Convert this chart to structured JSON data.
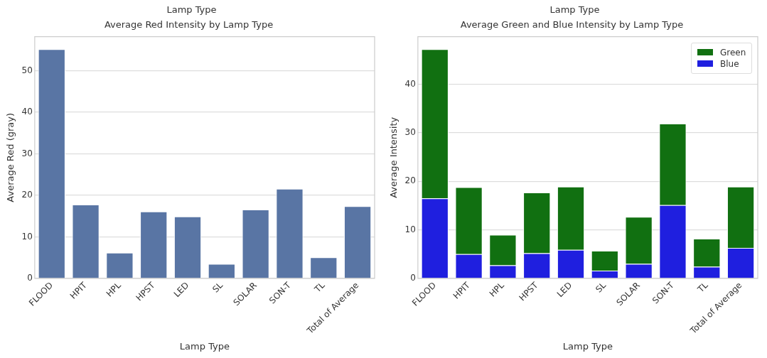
{
  "chart_data": [
    {
      "type": "bar",
      "title": "Average Red Intensity by Lamp Type",
      "xlabel": "Lamp Type",
      "ylabel": "Average Red (gray)",
      "annotations": [
        "Lamp Type"
      ],
      "categories": [
        "FLOOD",
        "HPIT",
        "HPL",
        "HPST",
        "LED",
        "SL",
        "SOLAR",
        "SON-T",
        "TL",
        "Total of Average"
      ],
      "values": [
        55.2,
        17.8,
        6.2,
        16.1,
        14.9,
        3.5,
        16.6,
        21.6,
        5.1,
        17.4
      ],
      "color": "#5975a4",
      "ylim": [
        0,
        58.2
      ],
      "yticks": [
        0,
        10,
        20,
        30,
        40,
        50
      ],
      "grid": "y"
    },
    {
      "type": "bar",
      "title": "Average Green and Blue Intensity by Lamp Type",
      "xlabel": "Lamp Type",
      "ylabel": "Average Intensity",
      "annotations": [
        "Lamp Type"
      ],
      "categories": [
        "FLOOD",
        "HPIT",
        "HPL",
        "HPST",
        "LED",
        "SL",
        "SOLAR",
        "SON-T",
        "TL",
        "Total of Average"
      ],
      "stacked": true,
      "series": [
        {
          "name": "Blue",
          "color": "#1f1fdf",
          "values": [
            16.5,
            5.0,
            2.7,
            5.2,
            5.9,
            1.6,
            3.0,
            15.1,
            2.4,
            6.3
          ]
        },
        {
          "name": "Green",
          "color": "#117011",
          "values": [
            30.7,
            13.8,
            6.3,
            12.5,
            13.0,
            4.1,
            9.7,
            16.8,
            5.8,
            12.6
          ]
        }
      ],
      "ylim": [
        0,
        49.8
      ],
      "yticks": [
        0,
        10,
        20,
        30,
        40
      ],
      "grid": "y",
      "legend": "top right"
    }
  ]
}
